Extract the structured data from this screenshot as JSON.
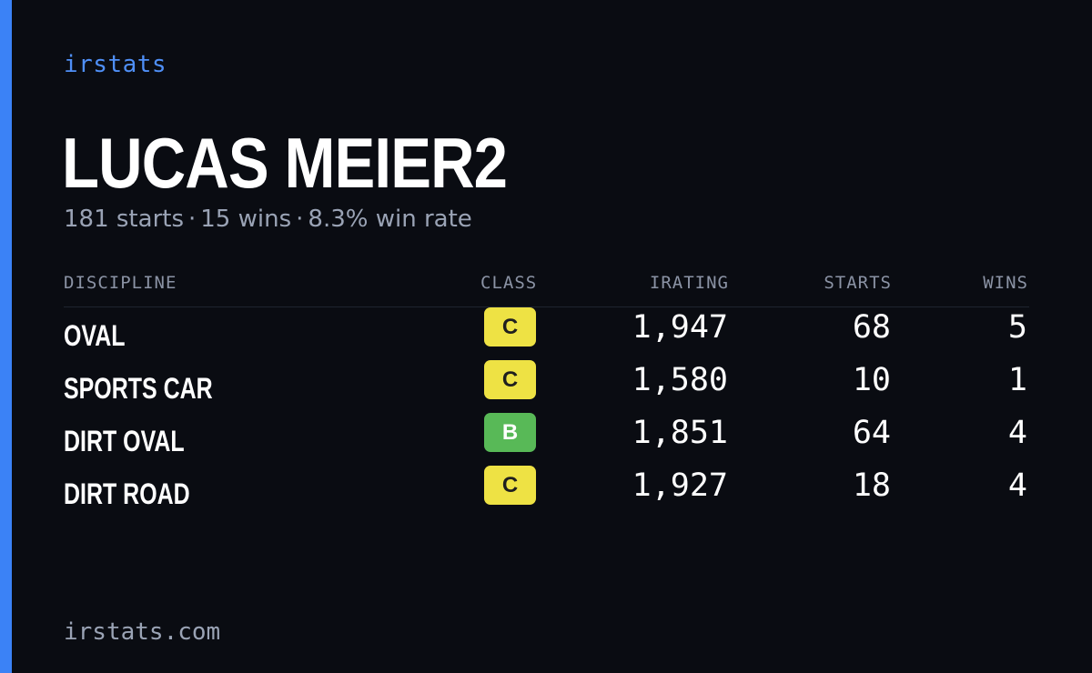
{
  "brand": "irstats",
  "player": {
    "name": "LUCAS MEIER2",
    "summary": {
      "starts": "181 starts",
      "wins": "15 wins",
      "win_rate": "8.3% win rate",
      "separator": "·"
    }
  },
  "table": {
    "headers": {
      "discipline": "DISCIPLINE",
      "class": "CLASS",
      "irating": "IRATING",
      "starts": "STARTS",
      "wins": "WINS"
    },
    "rows": [
      {
        "discipline": "OVAL",
        "class": "C",
        "irating": "1,947",
        "starts": "68",
        "wins": "5"
      },
      {
        "discipline": "SPORTS CAR",
        "class": "C",
        "irating": "1,580",
        "starts": "10",
        "wins": "1"
      },
      {
        "discipline": "DIRT OVAL",
        "class": "B",
        "irating": "1,851",
        "starts": "64",
        "wins": "4"
      },
      {
        "discipline": "DIRT ROAD",
        "class": "C",
        "irating": "1,927",
        "starts": "18",
        "wins": "4"
      }
    ]
  },
  "footer": "irstats.com",
  "colors": {
    "accent": "#3b82f6",
    "background": "#0a0c12",
    "class_c": "#eee244",
    "class_b": "#58b957"
  }
}
